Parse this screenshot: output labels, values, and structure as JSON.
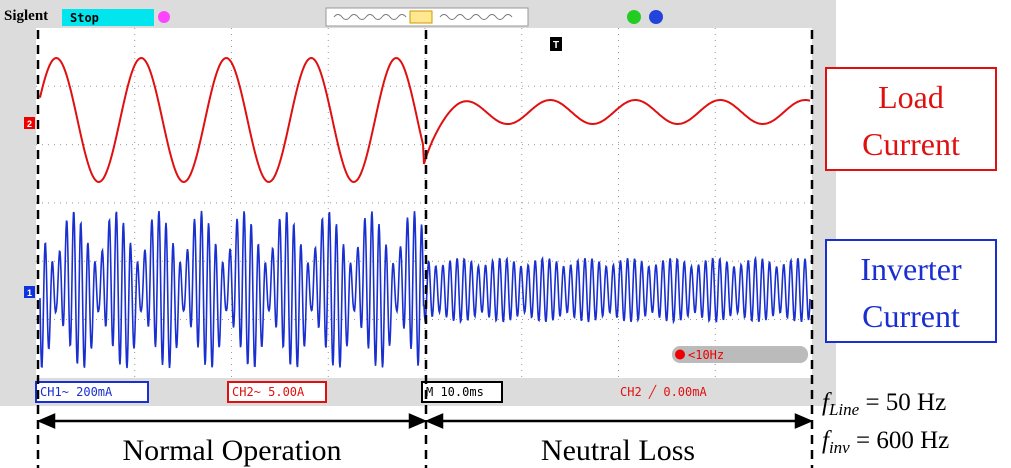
{
  "header": {
    "brand": "Siglent",
    "status": "Stop"
  },
  "markers": {
    "ch2": "2",
    "ch1": "1",
    "trigger": "T"
  },
  "status_bar": {
    "ch1": "CH1~ 200mA",
    "ch2": "CH2~ 5.00A",
    "timebase": "M 10.0ms",
    "trigger": "CH2 ╱ 0.00mA",
    "freq": "<10Hz"
  },
  "labels": {
    "load": [
      "Load",
      "Current"
    ],
    "inverter": [
      "Inverter",
      "Current"
    ]
  },
  "phases": [
    "Normal Operation",
    "Neutral Loss"
  ],
  "equations": [
    {
      "symbol": "f",
      "subscript": "Line",
      "rest": " = 50 Hz"
    },
    {
      "symbol": "f",
      "subscript": "inv",
      "rest": " = 600 Hz"
    }
  ]
}
